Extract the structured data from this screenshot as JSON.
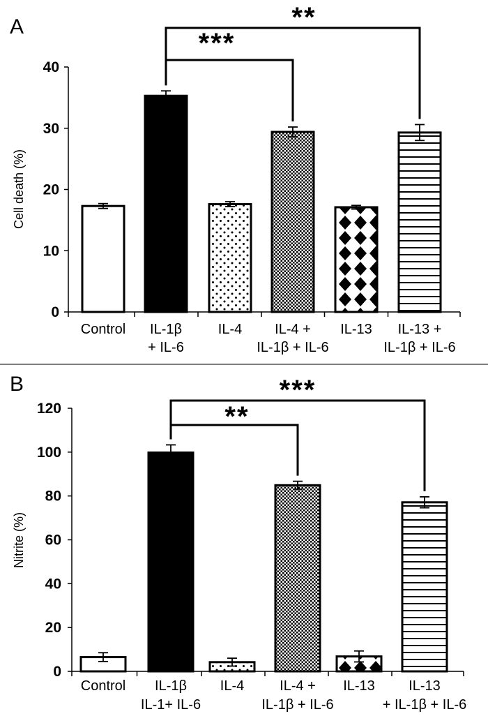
{
  "chart_data": [
    {
      "type": "bar",
      "panel_label": "A",
      "ylabel": "Cell death (%)",
      "ylim": [
        0,
        40
      ],
      "yticks": [
        "0",
        "10",
        "20",
        "30",
        "40"
      ],
      "categories": [
        [
          "Control"
        ],
        [
          "IL-1β",
          "+ IL-6"
        ],
        [
          "IL-4"
        ],
        [
          "IL-4 +",
          "IL-1β + IL-6"
        ],
        [
          "IL-13"
        ],
        [
          "IL-13 +",
          "IL-1β + IL-6"
        ]
      ],
      "values": [
        17.3,
        35.3,
        17.6,
        29.4,
        17.1,
        29.3
      ],
      "errors": [
        0.4,
        0.8,
        0.4,
        0.8,
        0.3,
        1.3
      ],
      "patterns": [
        "white",
        "black",
        "dots",
        "fine-dots",
        "diamonds",
        "hlines"
      ],
      "significance": [
        {
          "from": 1,
          "to": 3,
          "label": "***"
        },
        {
          "from": 1,
          "to": 5,
          "label": "**"
        }
      ]
    },
    {
      "type": "bar",
      "panel_label": "B",
      "ylabel": "Nitrite (%)",
      "ylim": [
        0,
        120
      ],
      "yticks": [
        "0",
        "20",
        "40",
        "60",
        "80",
        "100",
        "120"
      ],
      "categories": [
        [
          "Control"
        ],
        [
          "IL-1β",
          "IL-1+ IL-6"
        ],
        [
          "IL-4"
        ],
        [
          "IL-4 +",
          "IL-1β + IL-6"
        ],
        [
          "IL-13"
        ],
        [
          "IL-13",
          "+ IL-1β + IL-6"
        ]
      ],
      "values": [
        6.5,
        99.8,
        4.2,
        84.9,
        6.8,
        77.1
      ],
      "errors": [
        2.0,
        3.5,
        1.8,
        1.8,
        2.5,
        2.5
      ],
      "patterns": [
        "white",
        "black",
        "dots",
        "fine-dots",
        "diamonds",
        "hlines"
      ],
      "significance": [
        {
          "from": 1,
          "to": 3,
          "label": "**"
        },
        {
          "from": 1,
          "to": 5,
          "label": "***"
        }
      ]
    }
  ]
}
